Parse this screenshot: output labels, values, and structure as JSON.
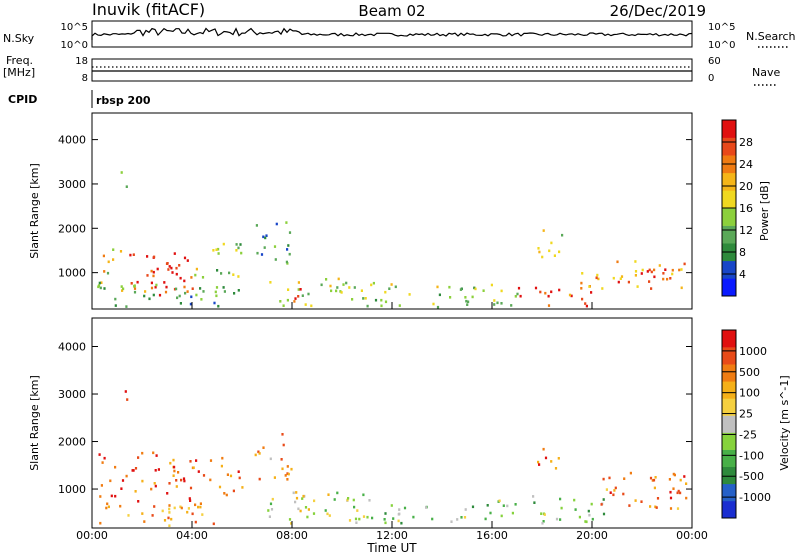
{
  "header": {
    "site": "Inuvik (fitACF)",
    "beam": "Beam 02",
    "date": "26/Dec/2019"
  },
  "top_panels": {
    "nsky_label": "N.Sky",
    "nsky_ticks": [
      "10^5",
      "10^0"
    ],
    "nsearch_label": "N.Search",
    "nsearch_ticks": [
      "10^5",
      "10^0"
    ],
    "freq_label": "Freq.",
    "freq_unit": "[MHz]",
    "freq_ticks": [
      "18",
      "8"
    ],
    "nave_label": "Nave",
    "nave_ticks": [
      "60",
      "0"
    ],
    "cpid_label": "CPID",
    "cpid_value": "rbsp 200"
  },
  "time_axis": {
    "label": "Time UT",
    "ticks": [
      "00:00",
      "04:00",
      "08:00",
      "12:00",
      "16:00",
      "20:00",
      "00:00"
    ]
  },
  "chart_data": [
    {
      "type": "heatmap",
      "panel": "power",
      "ylabel": "Slant Range [km]",
      "yticks": [
        1000,
        2000,
        3000,
        4000
      ],
      "ylim": [
        180,
        4600
      ],
      "xlim_hours": [
        0,
        24
      ],
      "colorbar": {
        "label": "Power [dB]",
        "ticks": [
          "4",
          "8",
          "12",
          "16",
          "20",
          "24",
          "28"
        ],
        "colors": [
          "#0a1aff",
          "#1846c8",
          "#2e8a3c",
          "#5aa858",
          "#8cd03c",
          "#f0d820",
          "#f5b518",
          "#f07b12",
          "#e8481a",
          "#e01010"
        ]
      },
      "regions": [
        {
          "t0": 0.2,
          "t1": 1.2,
          "r0": 600,
          "r1": 1600,
          "c": 0.55
        },
        {
          "t0": 1.2,
          "t1": 4.0,
          "r0": 600,
          "r1": 1500,
          "c": 0.85
        },
        {
          "t0": 2.2,
          "t1": 3.4,
          "r0": 500,
          "r1": 1400,
          "c": 0.95
        },
        {
          "t0": 4.0,
          "t1": 6.0,
          "r0": 900,
          "r1": 1700,
          "c": 0.45
        },
        {
          "t0": 0.2,
          "t1": 6.0,
          "r0": 250,
          "r1": 800,
          "c": 0.35
        },
        {
          "t0": 7.0,
          "t1": 11.0,
          "r0": 250,
          "r1": 900,
          "c": 0.5
        },
        {
          "t0": 7.8,
          "t1": 8.6,
          "r0": 250,
          "r1": 700,
          "c": 0.9
        },
        {
          "t0": 11.0,
          "t1": 17.0,
          "r0": 250,
          "r1": 800,
          "c": 0.45
        },
        {
          "t0": 17.0,
          "t1": 20.0,
          "r0": 250,
          "r1": 700,
          "c": 0.85
        },
        {
          "t0": 17.8,
          "t1": 19.0,
          "r0": 1300,
          "r1": 2000,
          "c": 0.55
        },
        {
          "t0": 19.5,
          "t1": 23.8,
          "r0": 650,
          "r1": 1300,
          "c": 0.7
        },
        {
          "t0": 21.0,
          "t1": 23.0,
          "r0": 800,
          "r1": 1200,
          "c": 0.9
        },
        {
          "t0": 6.5,
          "t1": 8.0,
          "r0": 1200,
          "r1": 2200,
          "c": 0.3
        },
        {
          "t0": 1.0,
          "t1": 1.4,
          "r0": 2900,
          "r1": 3400,
          "c": 0.35
        }
      ]
    },
    {
      "type": "heatmap",
      "panel": "velocity",
      "ylabel": "Slant Range [km]",
      "yticks": [
        1000,
        2000,
        3000,
        4000
      ],
      "ylim": [
        180,
        4600
      ],
      "xlim_hours": [
        0,
        24
      ],
      "colorbar": {
        "label": "Velocity [m s^-1]",
        "ticks": [
          "1000",
          "500",
          "100",
          "25",
          "-25",
          "-100",
          "-500",
          "-1000"
        ],
        "colors": [
          "#1a2ed0",
          "#2560c8",
          "#2e8a3c",
          "#48b048",
          "#86d23c",
          "#c0c0c0",
          "#f5d040",
          "#f5b018",
          "#f07c12",
          "#e84a18",
          "#e01010"
        ]
      },
      "regions": [
        {
          "t0": 0.2,
          "t1": 4.5,
          "r0": 600,
          "r1": 1800,
          "c": 0.83
        },
        {
          "t0": 4.5,
          "t1": 6.0,
          "r0": 900,
          "r1": 1700,
          "c": 0.78
        },
        {
          "t0": 0.2,
          "t1": 5.0,
          "r0": 250,
          "r1": 700,
          "c": 0.72
        },
        {
          "t0": 7.0,
          "t1": 11.0,
          "r0": 300,
          "r1": 1000,
          "c": 0.45
        },
        {
          "t0": 8.0,
          "t1": 9.5,
          "r0": 400,
          "r1": 1000,
          "c": 0.55
        },
        {
          "t0": 11.0,
          "t1": 17.0,
          "r0": 300,
          "r1": 800,
          "c": 0.42
        },
        {
          "t0": 17.0,
          "t1": 20.5,
          "r0": 300,
          "r1": 900,
          "c": 0.38
        },
        {
          "t0": 17.8,
          "t1": 18.8,
          "r0": 1300,
          "r1": 1900,
          "c": 0.8
        },
        {
          "t0": 20.0,
          "t1": 23.8,
          "r0": 500,
          "r1": 1400,
          "c": 0.78
        },
        {
          "t0": 6.5,
          "t1": 8.0,
          "r0": 1200,
          "r1": 2200,
          "c": 0.7
        },
        {
          "t0": 1.0,
          "t1": 1.4,
          "r0": 2900,
          "r1": 3300,
          "c": 0.8
        }
      ]
    }
  ]
}
